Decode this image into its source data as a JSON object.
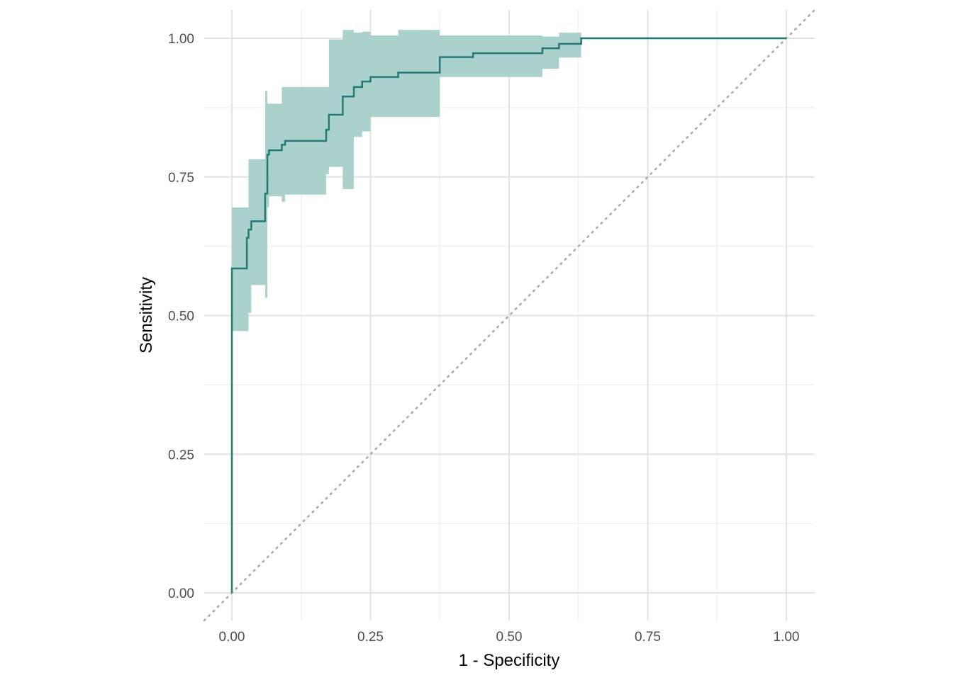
{
  "chart_data": {
    "type": "line",
    "xlabel": "1 - Specificity",
    "ylabel": "Sensitivity",
    "xlim": [
      0,
      1
    ],
    "ylim": [
      0,
      1
    ],
    "x_ticks": [
      "0.00",
      "0.25",
      "0.50",
      "0.75",
      "1.00"
    ],
    "y_ticks": [
      "0.00",
      "0.25",
      "0.50",
      "0.75",
      "1.00"
    ],
    "grid": true,
    "reference_line": "diagonal dotted",
    "colors": {
      "line": "#227a73",
      "band": "#a7cfca",
      "diagonal": "#a9a9a9",
      "grid": "#ebebeb"
    },
    "series": [
      {
        "x": [
          0.0,
          0.0,
          0.027,
          0.027,
          0.03,
          0.035,
          0.06,
          0.064,
          0.067,
          0.09,
          0.096,
          0.17,
          0.175,
          0.2,
          0.22,
          0.235,
          0.25,
          0.3,
          0.375,
          0.435,
          0.56,
          0.59,
          0.63,
          1.0
        ],
        "y": [
          0.0,
          0.585,
          0.585,
          0.64,
          0.655,
          0.67,
          0.72,
          0.79,
          0.798,
          0.808,
          0.815,
          0.835,
          0.862,
          0.895,
          0.912,
          0.922,
          0.93,
          0.938,
          0.966,
          0.973,
          0.982,
          0.99,
          1.0,
          1.0
        ]
      }
    ],
    "confidence_band": {
      "x": [
        0.0,
        0.027,
        0.03,
        0.035,
        0.06,
        0.064,
        0.067,
        0.09,
        0.096,
        0.17,
        0.175,
        0.2,
        0.22,
        0.235,
        0.25,
        0.3,
        0.375,
        0.435,
        0.56,
        0.59,
        0.63
      ],
      "lower": [
        0.472,
        0.472,
        0.505,
        0.555,
        0.532,
        0.695,
        0.715,
        0.705,
        0.718,
        0.755,
        0.768,
        0.728,
        0.822,
        0.832,
        0.858,
        0.858,
        0.93,
        0.93,
        0.945,
        0.965,
        0.975
      ],
      "upper": [
        0.695,
        0.695,
        0.782,
        0.782,
        0.905,
        0.882,
        0.882,
        0.912,
        0.912,
        0.912,
        0.998,
        1.015,
        1.01,
        1.012,
        1.005,
        1.015,
        1.005,
        1.005,
        1.003,
        1.01,
        1.008
      ]
    }
  }
}
